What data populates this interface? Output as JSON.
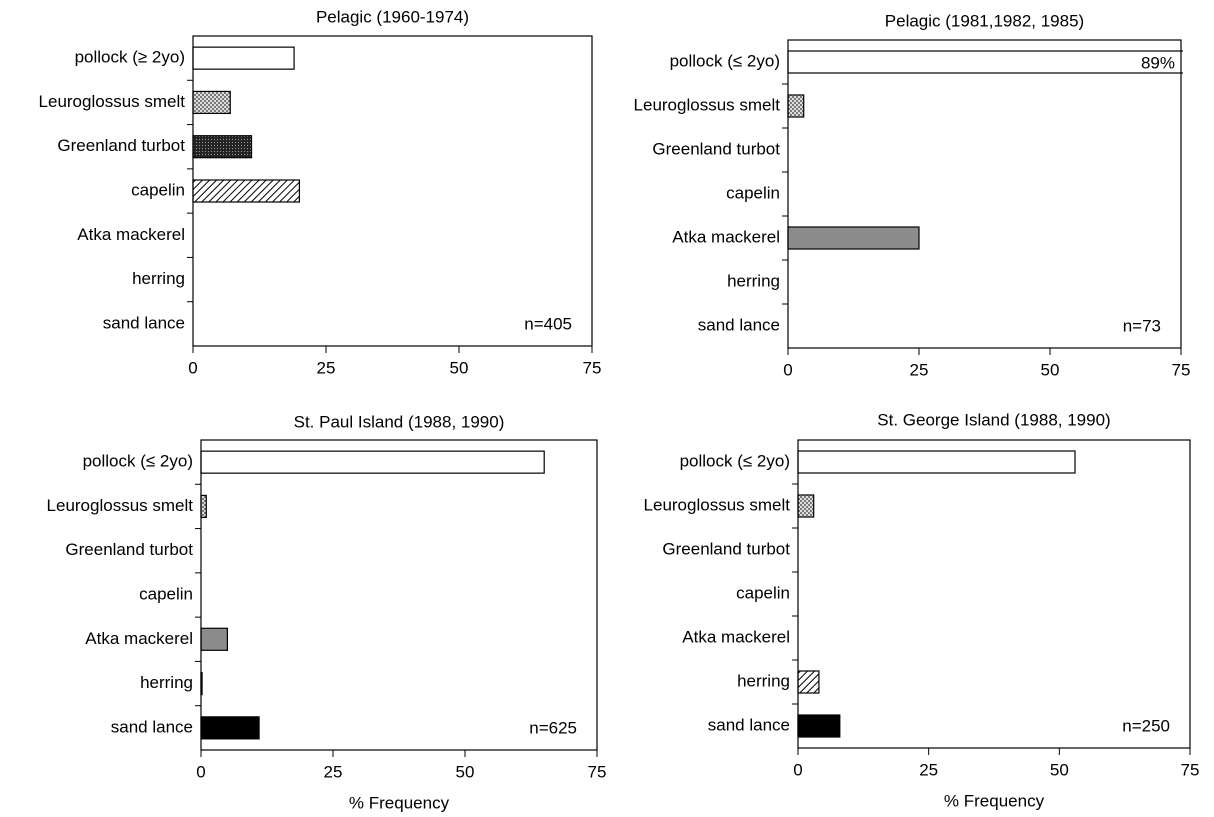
{
  "chart_data": [
    {
      "type": "hbar",
      "title": "Pelagic (1960-1974)",
      "categories": [
        "pollock (≥ 2yo)",
        "Leuroglossus smelt",
        "Greenland turbot",
        "capelin",
        "Atka mackerel",
        "herring",
        "sand lance"
      ],
      "values": [
        19,
        7,
        11,
        20,
        0,
        0,
        0
      ],
      "colors": [
        "#ffffff",
        "#bbbbbb",
        "#333333",
        "#ffffff",
        "#8c8c8c",
        "#ffffff",
        "#000000"
      ],
      "patterns": [
        "none",
        "dots",
        "dots",
        "hatch",
        "none",
        "hatch",
        "none"
      ],
      "annotation": "n=405",
      "xlim": [
        0,
        75
      ],
      "xticks": [
        0,
        25,
        50,
        75
      ]
    },
    {
      "type": "hbar",
      "title": "Pelagic (1981,1982, 1985)",
      "categories": [
        "pollock (≤ 2yo)",
        "Leuroglossus smelt",
        "Greenland turbot",
        "capelin",
        "Atka mackerel",
        "herring",
        "sand lance"
      ],
      "values": [
        89,
        3,
        0,
        0,
        25,
        0,
        0
      ],
      "value_labels": [
        "89%",
        null,
        null,
        null,
        null,
        null,
        null
      ],
      "colors": [
        "#ffffff",
        "#bbbbbb",
        "#333333",
        "#ffffff",
        "#8c8c8c",
        "#ffffff",
        "#000000"
      ],
      "patterns": [
        "none",
        "dots",
        "dots",
        "hatch",
        "none",
        "hatch",
        "none"
      ],
      "annotation": "n=73",
      "xlim": [
        0,
        75
      ],
      "xticks": [
        0,
        25,
        50,
        75
      ]
    },
    {
      "type": "hbar",
      "title": "St. Paul Island (1988, 1990)",
      "categories": [
        "pollock (≤ 2yo)",
        "Leuroglossus smelt",
        "Greenland turbot",
        "capelin",
        "Atka mackerel",
        "herring",
        "sand lance"
      ],
      "values": [
        65,
        1,
        0,
        0,
        5,
        0.2,
        11
      ],
      "colors": [
        "#ffffff",
        "#bbbbbb",
        "#333333",
        "#ffffff",
        "#8c8c8c",
        "#ffffff",
        "#000000"
      ],
      "patterns": [
        "none",
        "dots",
        "dots",
        "hatch",
        "none",
        "hatch",
        "none"
      ],
      "annotation": "n=625",
      "xlabel": "% Frequency",
      "xlim": [
        0,
        75
      ],
      "xticks": [
        0,
        25,
        50,
        75
      ]
    },
    {
      "type": "hbar",
      "title": "St. George Island (1988, 1990)",
      "categories": [
        "pollock (≤ 2yo)",
        "Leuroglossus smelt",
        "Greenland turbot",
        "capelin",
        "Atka mackerel",
        "herring",
        "sand lance"
      ],
      "values": [
        53,
        3,
        0,
        0,
        0,
        4,
        8
      ],
      "colors": [
        "#ffffff",
        "#bbbbbb",
        "#333333",
        "#ffffff",
        "#8c8c8c",
        "#ffffff",
        "#000000"
      ],
      "patterns": [
        "none",
        "dots",
        "dots",
        "hatch",
        "none",
        "hatch",
        "none"
      ],
      "annotation": "n=250",
      "xlabel": "% Frequency",
      "xlim": [
        0,
        75
      ],
      "xticks": [
        0,
        25,
        50,
        75
      ]
    }
  ]
}
